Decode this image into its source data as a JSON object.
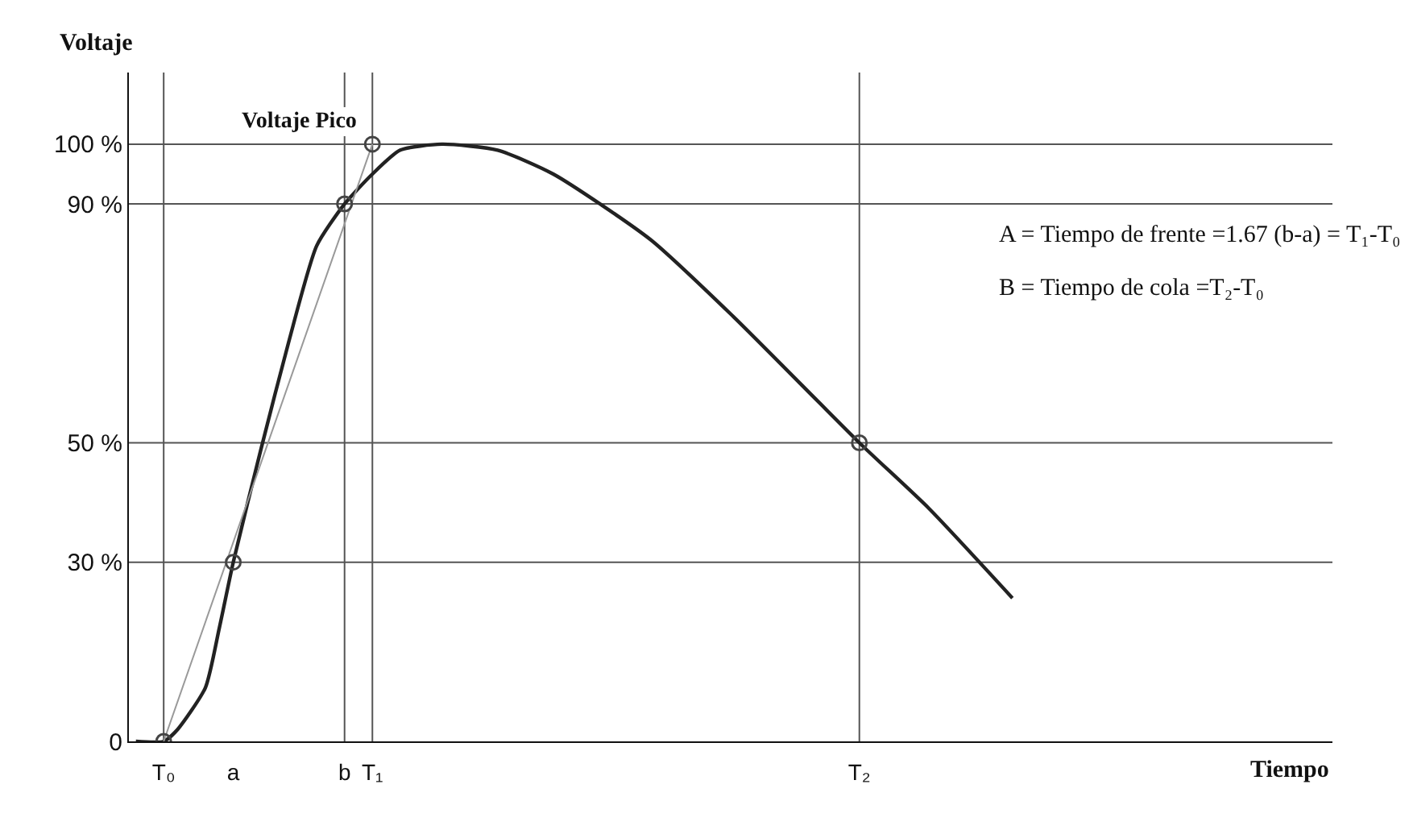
{
  "chart_data": {
    "type": "line",
    "ylabel": "Voltaje",
    "categories": [
      null,
      null,
      "T₀",
      null,
      null,
      null,
      null,
      "a",
      null,
      null,
      null,
      null,
      null,
      null,
      null,
      "b",
      null,
      "T₁",
      null,
      null,
      null,
      null,
      null,
      null,
      null,
      null,
      null,
      null,
      null,
      null,
      null,
      null,
      null,
      null,
      null,
      null,
      null,
      null,
      null,
      null,
      null,
      null,
      null,
      null,
      null,
      null,
      null,
      null,
      null,
      null,
      null,
      null,
      "T₂",
      null,
      null,
      null,
      null,
      null,
      null,
      null,
      null,
      null,
      null,
      null
    ],
    "ylim": [
      0,
      112
    ],
    "yticks": [
      0,
      {
        "value": 30,
        "label": "30 %"
      },
      {
        "value": 50,
        "label": "50 %"
      },
      {
        "value": 90,
        "label": "90 %"
      },
      {
        "value": 100,
        "label": "100 %"
      }
    ],
    "series": [
      {
        "color": "#222222",
        "values": [
          0,
          null,
          0,
          2,
          null,
          9,
          19,
          30,
          null,
          49,
          null,
          67,
          null,
          83,
          null,
          90,
          null,
          95,
          null,
          99,
          null,
          null,
          100,
          null,
          null,
          null,
          99,
          null,
          null,
          null,
          95,
          null,
          null,
          null,
          null,
          null,
          null,
          84,
          null,
          null,
          null,
          null,
          null,
          71,
          null,
          null,
          null,
          null,
          null,
          null,
          null,
          null,
          50,
          null,
          null,
          null,
          null,
          39,
          null,
          null,
          null,
          null,
          null,
          24
        ]
      },
      {
        "color": "#999999",
        "x": [
          "T₀",
          "T₁"
        ],
        "values": [
          0,
          100
        ]
      },
      {
        "type": "scatter",
        "color": "#444444",
        "marker": "circle",
        "x": [
          "T₀",
          "a",
          "b",
          "T₁",
          "T₂"
        ],
        "values": [
          0,
          30,
          90,
          100,
          50
        ]
      }
    ],
    "ref_lines": [
      {
        "axis": "x",
        "value": "T₀"
      },
      {
        "axis": "x",
        "value": "b"
      },
      {
        "axis": "x",
        "value": "T₁"
      },
      {
        "axis": "x",
        "value": "T₂"
      },
      {
        "axis": "y",
        "value": 30
      },
      {
        "axis": "y",
        "value": 50
      },
      {
        "axis": "y",
        "value": 90
      },
      {
        "axis": "y",
        "value": 100
      }
    ],
    "annotations": [
      {
        "text": "Voltaje Pico",
        "x": "T₁",
        "y": 100
      },
      "Tiempo",
      "A = Tiempo de frente =1.67 (b-a) = T₁-T₀",
      "B = Tiempo de cola =T₂-T₀"
    ]
  }
}
